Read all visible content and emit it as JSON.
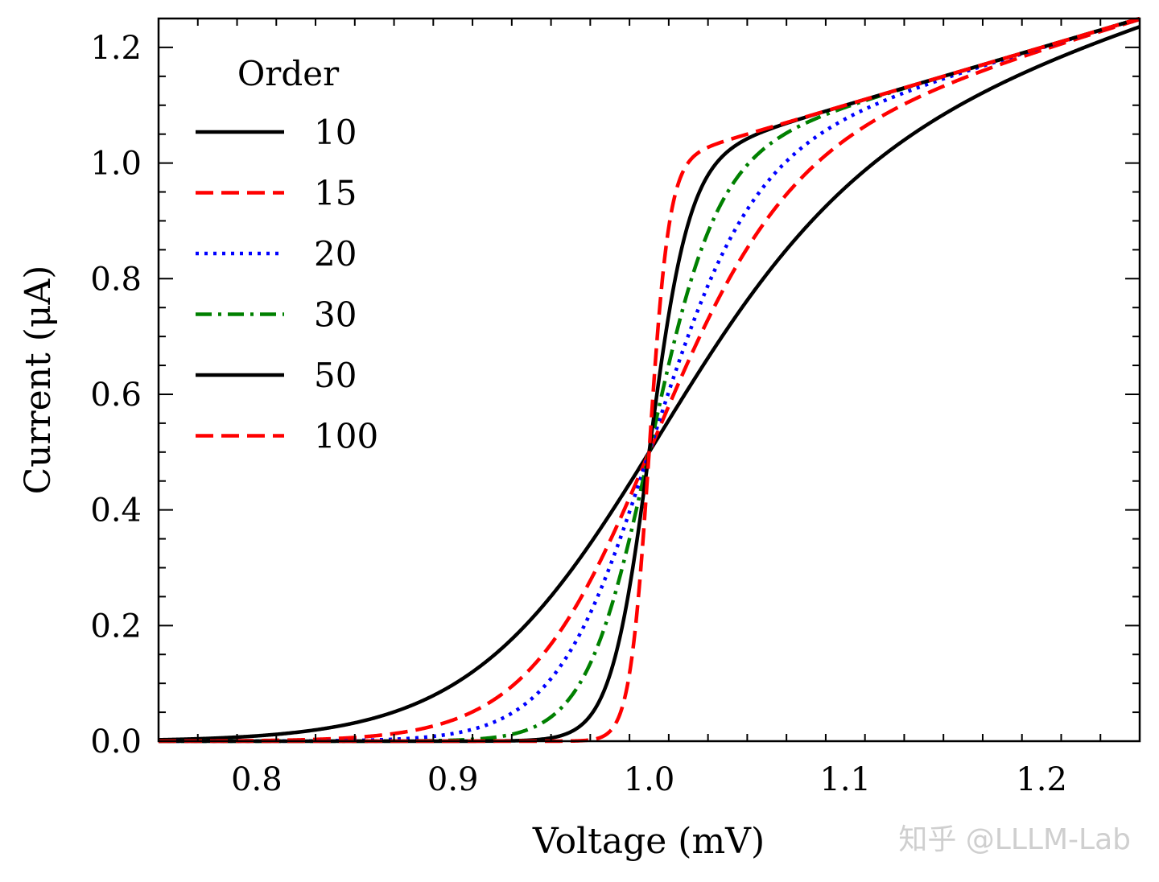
{
  "chart_data": {
    "type": "line",
    "xlabel": "Voltage (mV)",
    "ylabel": "Current (μA)",
    "xlim": [
      0.75,
      1.25
    ],
    "ylim": [
      0.0,
      1.25
    ],
    "xticks": [
      "0.8",
      "0.9",
      "1.0",
      "1.1",
      "1.2"
    ],
    "yticks": [
      "0.0",
      "0.2",
      "0.4",
      "0.6",
      "0.8",
      "1.0",
      "1.2"
    ],
    "grid": false,
    "legend": {
      "title": "Order",
      "placement": "top-left"
    },
    "series": [
      {
        "name": "10",
        "order": 10,
        "color": "#000000",
        "linestyle": "solid"
      },
      {
        "name": "15",
        "order": 15,
        "color": "#ff0000",
        "linestyle": "dashed"
      },
      {
        "name": "20",
        "order": 20,
        "color": "#0000ff",
        "linestyle": "dotted"
      },
      {
        "name": "30",
        "order": 30,
        "color": "#008000",
        "linestyle": "dashdot"
      },
      {
        "name": "50",
        "order": 50,
        "color": "#000000",
        "linestyle": "solid"
      },
      {
        "name": "100",
        "order": 100,
        "color": "#ff0000",
        "linestyle": "dashed"
      }
    ],
    "model": "y = x^(2p+1) / (1 + x^(2p))"
  },
  "watermark": "知乎 @LLLM-Lab"
}
